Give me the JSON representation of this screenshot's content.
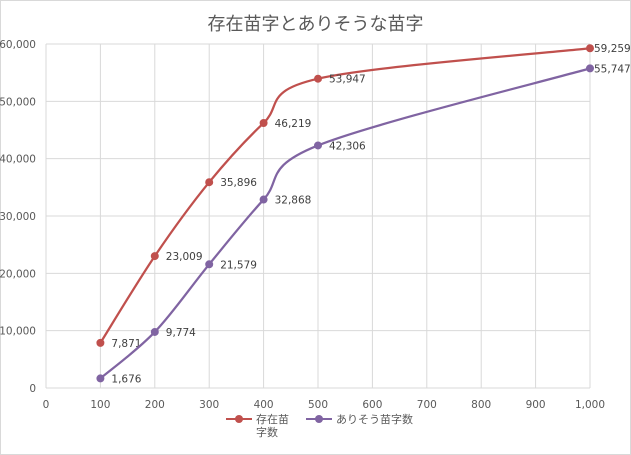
{
  "chart_data": {
    "type": "line",
    "title": "存在苗字とありそうな苗字",
    "x": [
      100,
      200,
      300,
      400,
      500,
      1000
    ],
    "xlim": [
      0,
      1000
    ],
    "ylim": [
      0,
      60000
    ],
    "x_ticks": [
      "0",
      "100",
      "200",
      "300",
      "400",
      "500",
      "600",
      "700",
      "800",
      "900",
      "1,000"
    ],
    "y_ticks": [
      "0",
      "10,000",
      "20,000",
      "30,000",
      "40,000",
      "50,000",
      "60,000"
    ],
    "grid": true,
    "legend_position": "bottom",
    "series": [
      {
        "name": "存在苗字数",
        "color": "#c0504d",
        "values": [
          7871,
          23009,
          35896,
          46219,
          53947,
          59259
        ],
        "labels": [
          "7,871",
          "23,009",
          "35,896",
          "46,219",
          "53,947",
          "59,259"
        ]
      },
      {
        "name": "ありそう苗字数",
        "color": "#8064a2",
        "values": [
          1676,
          9774,
          21579,
          32868,
          42306,
          55747
        ],
        "labels": [
          "1,676",
          "9,774",
          "21,579",
          "32,868",
          "42,306",
          "55,747"
        ]
      }
    ]
  }
}
